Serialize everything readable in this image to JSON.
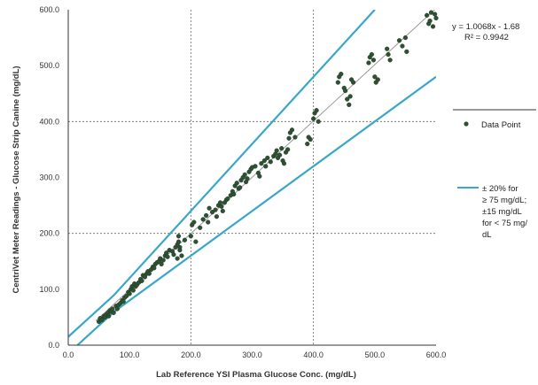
{
  "chart_data": {
    "type": "scatter",
    "xlabel": "Lab Reference YSI Plasma Glucose Conc. (mg/dL)",
    "ylabel": "CentriVet Meter Readings - Glucose Strip Canine (mg/dL)",
    "xlim": [
      0,
      600
    ],
    "ylim": [
      0,
      600
    ],
    "x_ticks": [
      "0.0",
      "100.0",
      "200.0",
      "300.0",
      "400.0",
      "500.0",
      "600.0"
    ],
    "y_ticks": [
      "0.0",
      "100.0",
      "200.0",
      "300.0",
      "400.0",
      "500.0",
      "600.0"
    ],
    "grid": "dotted at 200 and 400",
    "equation": "y = 1.0068x - 1.68",
    "r_squared": "R² = 0.9942",
    "trendline": {
      "slope": 1.0068,
      "intercept": -1.68,
      "color": "#999999"
    },
    "bounds": {
      "upper": {
        "points": [
          [
            0,
            15
          ],
          [
            75,
            90
          ],
          [
            500,
            600
          ]
        ]
      },
      "lower": {
        "points": [
          [
            15,
            0
          ],
          [
            75,
            60
          ],
          [
            600,
            480
          ]
        ]
      },
      "color": "#3aa6c9"
    },
    "legend": [
      {
        "label": "Data Point",
        "marker": "dot",
        "color": "#2f5133"
      },
      {
        "label_lines": [
          "± 20% for",
          "≥ 75 mg/dL;",
          "±15 mg/dL",
          "for < 75 mg/",
          "dL"
        ],
        "marker": "line",
        "color": "#3aa6c9"
      }
    ],
    "series": [
      {
        "marker_color": "#2f5133",
        "points": [
          [
            50,
            42
          ],
          [
            52,
            48
          ],
          [
            55,
            45
          ],
          [
            58,
            52
          ],
          [
            60,
            50
          ],
          [
            62,
            55
          ],
          [
            65,
            58
          ],
          [
            66,
            52
          ],
          [
            68,
            62
          ],
          [
            70,
            60
          ],
          [
            72,
            65
          ],
          [
            74,
            58
          ],
          [
            78,
            70
          ],
          [
            80,
            65
          ],
          [
            82,
            72
          ],
          [
            85,
            75
          ],
          [
            88,
            80
          ],
          [
            90,
            78
          ],
          [
            92,
            85
          ],
          [
            95,
            88
          ],
          [
            98,
            95
          ],
          [
            100,
            92
          ],
          [
            102,
            100
          ],
          [
            104,
            105
          ],
          [
            106,
            98
          ],
          [
            108,
            110
          ],
          [
            110,
            105
          ],
          [
            112,
            108
          ],
          [
            115,
            112
          ],
          [
            118,
            118
          ],
          [
            120,
            115
          ],
          [
            122,
            125
          ],
          [
            125,
            122
          ],
          [
            128,
            128
          ],
          [
            130,
            132
          ],
          [
            132,
            128
          ],
          [
            135,
            135
          ],
          [
            138,
            140
          ],
          [
            140,
            138
          ],
          [
            142,
            145
          ],
          [
            145,
            148
          ],
          [
            148,
            150
          ],
          [
            150,
            155
          ],
          [
            152,
            145
          ],
          [
            155,
            152
          ],
          [
            158,
            160
          ],
          [
            160,
            165
          ],
          [
            162,
            158
          ],
          [
            165,
            170
          ],
          [
            170,
            168
          ],
          [
            172,
            162
          ],
          [
            175,
            175
          ],
          [
            178,
            180
          ],
          [
            180,
            185
          ],
          [
            182,
            170
          ],
          [
            185,
            160
          ],
          [
            178,
            155
          ],
          [
            180,
            195
          ],
          [
            182,
            175
          ],
          [
            190,
            188
          ],
          [
            200,
            195
          ],
          [
            202,
            215
          ],
          [
            205,
            220
          ],
          [
            208,
            185
          ],
          [
            215,
            210
          ],
          [
            220,
            225
          ],
          [
            225,
            232
          ],
          [
            228,
            220
          ],
          [
            230,
            245
          ],
          [
            235,
            238
          ],
          [
            240,
            242
          ],
          [
            242,
            230
          ],
          [
            245,
            250
          ],
          [
            248,
            255
          ],
          [
            250,
            248
          ],
          [
            252,
            240
          ],
          [
            255,
            255
          ],
          [
            258,
            260
          ],
          [
            260,
            262
          ],
          [
            265,
            268
          ],
          [
            268,
            275
          ],
          [
            270,
            270
          ],
          [
            272,
            285
          ],
          [
            275,
            290
          ],
          [
            278,
            280
          ],
          [
            280,
            282
          ],
          [
            282,
            295
          ],
          [
            285,
            300
          ],
          [
            288,
            305
          ],
          [
            290,
            292
          ],
          [
            292,
            298
          ],
          [
            295,
            310
          ],
          [
            298,
            315
          ],
          [
            300,
            318
          ],
          [
            305,
            320
          ],
          [
            310,
            308
          ],
          [
            312,
            302
          ],
          [
            315,
            325
          ],
          [
            320,
            330
          ],
          [
            322,
            320
          ],
          [
            325,
            335
          ],
          [
            330,
            328
          ],
          [
            335,
            338
          ],
          [
            338,
            342
          ],
          [
            340,
            348
          ],
          [
            342,
            335
          ],
          [
            345,
            340
          ],
          [
            348,
            352
          ],
          [
            350,
            330
          ],
          [
            352,
            325
          ],
          [
            355,
            345
          ],
          [
            358,
            350
          ],
          [
            360,
            370
          ],
          [
            362,
            380
          ],
          [
            365,
            385
          ],
          [
            370,
            372
          ],
          [
            390,
            360
          ],
          [
            392,
            372
          ],
          [
            395,
            368
          ],
          [
            400,
            405
          ],
          [
            402,
            415
          ],
          [
            405,
            420
          ],
          [
            408,
            400
          ],
          [
            440,
            470
          ],
          [
            442,
            480
          ],
          [
            445,
            485
          ],
          [
            450,
            460
          ],
          [
            452,
            455
          ],
          [
            455,
            440
          ],
          [
            458,
            430
          ],
          [
            460,
            445
          ],
          [
            462,
            475
          ],
          [
            465,
            470
          ],
          [
            490,
            505
          ],
          [
            492,
            515
          ],
          [
            495,
            520
          ],
          [
            498,
            510
          ],
          [
            500,
            480
          ],
          [
            502,
            470
          ],
          [
            505,
            475
          ],
          [
            520,
            530
          ],
          [
            522,
            520
          ],
          [
            525,
            510
          ],
          [
            540,
            545
          ],
          [
            545,
            535
          ],
          [
            550,
            550
          ],
          [
            552,
            525
          ],
          [
            585,
            590
          ],
          [
            588,
            575
          ],
          [
            590,
            580
          ],
          [
            592,
            595
          ],
          [
            595,
            570
          ],
          [
            598,
            592
          ],
          [
            600,
            585
          ]
        ]
      }
    ]
  }
}
